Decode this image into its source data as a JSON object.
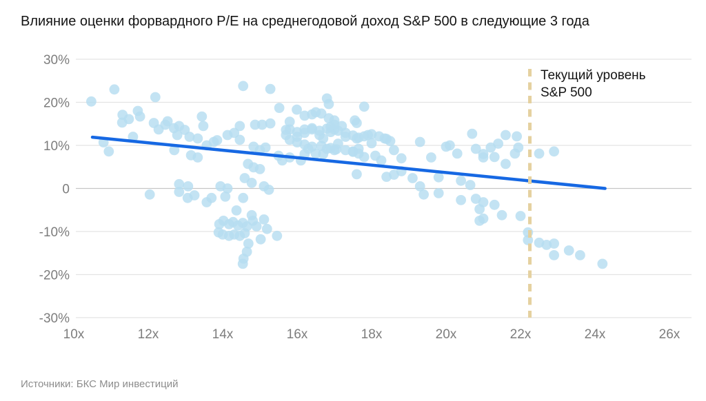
{
  "title": "Влияние оценки форвардного P/E на среднегодовой доход S&P 500 в следующие 3 года",
  "source": "Источники: БКС Мир инвестиций",
  "annotation": {
    "line1": "Текущий уровень",
    "line2": "S&P 500"
  },
  "chart_data": {
    "type": "scatter",
    "xlabel": "",
    "ylabel": "",
    "xlim": [
      10,
      26
    ],
    "ylim": [
      -30,
      30
    ],
    "grid": "horizontal-only",
    "x_ticks": [
      "10x",
      "12x",
      "14x",
      "16x",
      "18x",
      "20x",
      "22x",
      "24x",
      "26x"
    ],
    "x_tick_values": [
      10,
      12,
      14,
      16,
      18,
      20,
      22,
      24,
      26
    ],
    "y_ticks": [
      "30%",
      "20%",
      "10%",
      "0",
      "-10%",
      "-20%",
      "-30%"
    ],
    "y_tick_values": [
      30,
      20,
      10,
      0,
      -10,
      -20,
      -30
    ],
    "trendline": {
      "x1": 10.5,
      "y1": 11.9,
      "x2": 24.27,
      "y2": 0.0
    },
    "current_level_x": 22.25,
    "colors": {
      "dot": "#b6ddf0",
      "trend": "#1668e3",
      "dashed": "#e5d1a0",
      "grid": "#e3e3e3",
      "zero_grid": "#c6c6c6",
      "tick": "#7d7d7d",
      "title": "#141414",
      "annotation": "#141414",
      "source": "#8c8c8c"
    },
    "points": [
      [
        10.47,
        20.2
      ],
      [
        10.8,
        10.7
      ],
      [
        10.94,
        8.6
      ],
      [
        11.09,
        23.0
      ],
      [
        11.3,
        15.3
      ],
      [
        11.31,
        17.1
      ],
      [
        11.48,
        16.1
      ],
      [
        11.59,
        12.0
      ],
      [
        11.72,
        18.0
      ],
      [
        11.78,
        16.7
      ],
      [
        12.15,
        15.2
      ],
      [
        12.19,
        21.2
      ],
      [
        12.28,
        13.7
      ],
      [
        12.46,
        14.8
      ],
      [
        12.52,
        15.6
      ],
      [
        12.69,
        14.0
      ],
      [
        12.7,
        8.9
      ],
      [
        12.78,
        12.4
      ],
      [
        12.83,
        14.5
      ],
      [
        12.83,
        1.0
      ],
      [
        12.98,
        13.6
      ],
      [
        13.07,
        0.5
      ],
      [
        13.11,
        12.0
      ],
      [
        13.15,
        7.7
      ],
      [
        13.33,
        11.6
      ],
      [
        13.33,
        7.2
      ],
      [
        13.44,
        16.7
      ],
      [
        13.48,
        14.5
      ],
      [
        13.57,
        10.0
      ],
      [
        13.76,
        10.8
      ],
      [
        13.85,
        11.2
      ],
      [
        13.94,
        0.5
      ],
      [
        14.13,
        12.4
      ],
      [
        14.13,
        0.0
      ],
      [
        14.31,
        12.9
      ],
      [
        14.46,
        14.5
      ],
      [
        14.46,
        11.3
      ],
      [
        14.55,
        23.8
      ],
      [
        14.59,
        2.4
      ],
      [
        14.68,
        5.7
      ],
      [
        14.78,
        1.3
      ],
      [
        14.83,
        9.7
      ],
      [
        14.83,
        4.9
      ],
      [
        14.87,
        14.8
      ],
      [
        15.0,
        8.9
      ],
      [
        15.0,
        4.5
      ],
      [
        15.06,
        14.8
      ],
      [
        15.11,
        0.5
      ],
      [
        15.15,
        9.5
      ],
      [
        15.28,
        23.1
      ],
      [
        15.28,
        15.1
      ],
      [
        15.52,
        18.7
      ],
      [
        12.04,
        -1.4
      ],
      [
        12.83,
        -0.8
      ],
      [
        13.06,
        -2.2
      ],
      [
        13.24,
        -1.6
      ],
      [
        13.57,
        -3.2
      ],
      [
        13.7,
        -2.2
      ],
      [
        14.07,
        -1.9
      ],
      [
        14.55,
        -2.2
      ],
      [
        15.24,
        -0.3
      ],
      [
        14.37,
        -5.1
      ],
      [
        14.78,
        -6.2
      ],
      [
        13.91,
        -8.3
      ],
      [
        14.02,
        -7.5
      ],
      [
        14.17,
        -8.3
      ],
      [
        14.28,
        -7.8
      ],
      [
        14.41,
        -8.6
      ],
      [
        14.54,
        -8.0
      ],
      [
        14.65,
        -8.8
      ],
      [
        14.81,
        -7.5
      ],
      [
        14.91,
        -8.8
      ],
      [
        15.11,
        -7.2
      ],
      [
        15.19,
        -9.4
      ],
      [
        13.89,
        -10.2
      ],
      [
        14.0,
        -10.7
      ],
      [
        14.17,
        -11.0
      ],
      [
        14.31,
        -10.7
      ],
      [
        14.46,
        -11.0
      ],
      [
        14.59,
        -10.4
      ],
      [
        15.02,
        -11.8
      ],
      [
        15.46,
        -11.0
      ],
      [
        14.69,
        -12.8
      ],
      [
        14.65,
        -14.7
      ],
      [
        14.56,
        -16.3
      ],
      [
        14.54,
        -17.5
      ],
      [
        15.7,
        13.6
      ],
      [
        15.7,
        12.4
      ],
      [
        15.8,
        15.5
      ],
      [
        15.8,
        13.7
      ],
      [
        15.8,
        11.3
      ],
      [
        15.5,
        7.6
      ],
      [
        15.6,
        6.5
      ],
      [
        15.8,
        7.2
      ],
      [
        15.99,
        18.3
      ],
      [
        16.0,
        13.1
      ],
      [
        16.0,
        12.0
      ],
      [
        16.0,
        10.7
      ],
      [
        16.1,
        6.5
      ],
      [
        16.2,
        16.9
      ],
      [
        16.2,
        13.7
      ],
      [
        16.2,
        12.9
      ],
      [
        16.2,
        10.2
      ],
      [
        16.2,
        8.0
      ],
      [
        16.3,
        9.2
      ],
      [
        16.4,
        17.2
      ],
      [
        16.4,
        14.0
      ],
      [
        16.4,
        13.7
      ],
      [
        16.4,
        9.7
      ],
      [
        16.5,
        17.7
      ],
      [
        16.5,
        8.1
      ],
      [
        16.6,
        13.4
      ],
      [
        16.6,
        12.4
      ],
      [
        16.65,
        17.4
      ],
      [
        16.65,
        9.9
      ],
      [
        16.7,
        11.6
      ],
      [
        16.7,
        8.0
      ],
      [
        16.8,
        20.9
      ],
      [
        16.8,
        13.9
      ],
      [
        16.8,
        9.2
      ],
      [
        16.85,
        19.6
      ],
      [
        16.85,
        16.3
      ],
      [
        16.9,
        14.3
      ],
      [
        16.9,
        13.1
      ],
      [
        16.9,
        9.4
      ],
      [
        17.0,
        15.8
      ],
      [
        17.0,
        14.8
      ],
      [
        17.0,
        13.7
      ],
      [
        17.0,
        8.9
      ],
      [
        17.05,
        9.1
      ],
      [
        17.1,
        13.4
      ],
      [
        17.1,
        10.4
      ],
      [
        17.2,
        14.5
      ],
      [
        17.3,
        12.9
      ],
      [
        17.3,
        12.0
      ],
      [
        17.3,
        8.9
      ],
      [
        17.5,
        12.3
      ],
      [
        17.5,
        8.6
      ],
      [
        17.5,
        8.5
      ],
      [
        17.55,
        15.8
      ],
      [
        17.6,
        15.2
      ],
      [
        17.6,
        11.6
      ],
      [
        17.6,
        3.3
      ],
      [
        17.65,
        11.8
      ],
      [
        17.65,
        9.2
      ],
      [
        17.65,
        8.1
      ],
      [
        17.8,
        19.0
      ],
      [
        17.8,
        12.1
      ],
      [
        17.8,
        7.3
      ],
      [
        17.9,
        12.4
      ],
      [
        18.0,
        12.6
      ],
      [
        18.0,
        10.5
      ],
      [
        18.1,
        7.6
      ],
      [
        18.2,
        12.1
      ],
      [
        18.26,
        6.5
      ],
      [
        18.35,
        11.6
      ],
      [
        18.4,
        11.5
      ],
      [
        18.4,
        2.7
      ],
      [
        18.5,
        11.0
      ],
      [
        18.6,
        8.9
      ],
      [
        18.6,
        3.2
      ],
      [
        18.8,
        7.0
      ],
      [
        18.8,
        4.0
      ],
      [
        19.1,
        2.4
      ],
      [
        19.3,
        10.8
      ],
      [
        19.3,
        0.5
      ],
      [
        19.4,
        -1.4
      ],
      [
        19.6,
        7.2
      ],
      [
        19.8,
        2.6
      ],
      [
        19.8,
        -1.1
      ],
      [
        20.0,
        9.7
      ],
      [
        20.1,
        10.0
      ],
      [
        20.3,
        8.1
      ],
      [
        20.4,
        1.8
      ],
      [
        20.4,
        -2.7
      ],
      [
        20.65,
        0.8
      ],
      [
        20.7,
        12.7
      ],
      [
        20.8,
        9.2
      ],
      [
        20.8,
        -2.4
      ],
      [
        20.9,
        -4.8
      ],
      [
        20.9,
        -7.5
      ],
      [
        21.0,
        8.0
      ],
      [
        21.0,
        7.2
      ],
      [
        21.2,
        9.5
      ],
      [
        21.3,
        7.3
      ],
      [
        21.4,
        10.4
      ],
      [
        21.6,
        12.4
      ],
      [
        21.6,
        5.7
      ],
      [
        21.85,
        8.1
      ],
      [
        21.9,
        12.1
      ],
      [
        21.94,
        9.5
      ],
      [
        22.5,
        8.1
      ],
      [
        22.9,
        8.6
      ],
      [
        21.0,
        -3.2
      ],
      [
        21.0,
        -7.0
      ],
      [
        21.3,
        -3.8
      ],
      [
        21.5,
        -6.2
      ],
      [
        22.0,
        -6.4
      ],
      [
        22.2,
        -10.2
      ],
      [
        22.2,
        -12.0
      ],
      [
        22.5,
        -12.6
      ],
      [
        22.7,
        -13.1
      ],
      [
        22.9,
        -12.8
      ],
      [
        22.9,
        -15.5
      ],
      [
        23.3,
        -14.4
      ],
      [
        23.6,
        -15.5
      ],
      [
        24.2,
        -17.5
      ]
    ]
  }
}
